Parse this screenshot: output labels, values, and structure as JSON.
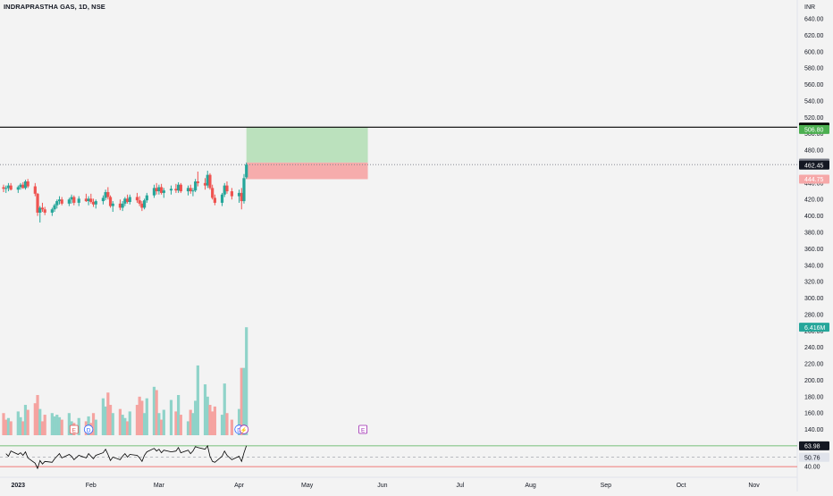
{
  "header": {
    "title": "INDRAPRASTHA GAS, 1D, NSE",
    "currency": "INR"
  },
  "colors": {
    "background": "#f3f3f3",
    "up": "#26a69a",
    "down": "#ef5350",
    "volume_up": "#8fd3c9",
    "volume_down": "#f5a3a0",
    "target_zone": "#b7dfb9",
    "stop_zone": "#f6a8a8",
    "level_line": "#000000",
    "rsi_line": "#000000",
    "rsi_upper": "#4caf50",
    "rsi_lower": "#ef5350",
    "event_earnings": "#e0524f",
    "event_dividend": "#2962ff",
    "event_split": "#9c27b0"
  },
  "price_badges": [
    {
      "label": "508.05",
      "value": 508.05,
      "bg": "#000000",
      "fg": "#ffffff"
    },
    {
      "label": "506.80",
      "value": 505.3,
      "bg": "#4caf50",
      "fg": "#ffffff"
    },
    {
      "label": "463.35",
      "value": 464.3,
      "bg": "#787b86",
      "fg": "#ffffff"
    },
    {
      "label": "462.45",
      "value": 461.9,
      "bg": "#131722",
      "fg": "#ffffff"
    },
    {
      "label": "444.75",
      "value": 444.75,
      "bg": "#f6a8a8",
      "fg": "#ffffff"
    },
    {
      "label": "6.416M",
      "value": 264.5,
      "bg": "#26a69a",
      "fg": "#ffffff"
    }
  ],
  "rsi_badges": [
    {
      "label": "63.98",
      "value": 63.98,
      "bg": "#131722",
      "fg": "#ffffff"
    },
    {
      "label": "50.76",
      "value": 50.76,
      "bg": "#e0e3eb",
      "fg": "#131722"
    },
    {
      "label": "40.00",
      "value": 40,
      "bg": "#f3f3f3",
      "fg": "#131722"
    }
  ],
  "event_markers": [
    {
      "type": "earnings",
      "symbol": "E",
      "date": "2023-01-25"
    },
    {
      "type": "dividend",
      "symbol": "D",
      "date": "2023-01-31"
    },
    {
      "type": "dividend",
      "symbol": "D",
      "date": "2023-04-03"
    },
    {
      "type": "split",
      "symbol": "⚡",
      "date": "2023-04-05"
    },
    {
      "type": "earnings",
      "symbol": "E",
      "date": "2023-05-24"
    }
  ],
  "chart_data": {
    "type": "candlestick",
    "title": "INDRAPRASTHA GAS, 1D, NSE",
    "y_axis": {
      "label": "INR",
      "range": [
        120,
        650
      ],
      "ticks": [
        "640.00",
        "620.00",
        "600.00",
        "580.00",
        "560.00",
        "540.00",
        "520.00",
        "500.00",
        "480.00",
        "460.00",
        "440.00",
        "420.00",
        "400.00",
        "380.00",
        "360.00",
        "340.00",
        "320.00",
        "300.00",
        "280.00",
        "260.00",
        "240.00",
        "220.00",
        "200.00",
        "180.00",
        "160.00",
        "140.00"
      ],
      "side": "right"
    },
    "x_axis": {
      "range": [
        "2022-12-27",
        "2023-11-10"
      ],
      "ticks": [
        {
          "label": "2023",
          "date": "2023-01-02"
        },
        {
          "label": "Feb",
          "date": "2023-02-01"
        },
        {
          "label": "Mar",
          "date": "2023-03-01"
        },
        {
          "label": "Apr",
          "date": "2023-04-03"
        },
        {
          "label": "May",
          "date": "2023-05-01"
        },
        {
          "label": "Jun",
          "date": "2023-06-01"
        },
        {
          "label": "Jul",
          "date": "2023-07-03"
        },
        {
          "label": "Aug",
          "date": "2023-08-01"
        },
        {
          "label": "Sep",
          "date": "2023-09-01"
        },
        {
          "label": "Oct",
          "date": "2023-10-02"
        },
        {
          "label": "Nov",
          "date": "2023-11-01"
        }
      ]
    },
    "horizontal_levels": [
      {
        "value": 508.05,
        "style": "solid"
      },
      {
        "value": 462.45,
        "style": "dotted"
      }
    ],
    "zones": [
      {
        "kind": "target",
        "start": "2023-04-06",
        "end": "2023-05-26",
        "from": 465.0,
        "to": 508.05
      },
      {
        "kind": "stop",
        "start": "2023-04-06",
        "end": "2023-05-26",
        "from": 444.75,
        "to": 465.0
      }
    ],
    "candles": [
      {
        "d": "2022-12-27",
        "o": 435,
        "h": 438,
        "l": 429,
        "c": 433
      },
      {
        "d": "2022-12-28",
        "o": 433,
        "h": 437,
        "l": 428,
        "c": 434
      },
      {
        "d": "2022-12-29",
        "o": 434,
        "h": 440,
        "l": 430,
        "c": 437
      },
      {
        "d": "2022-12-30",
        "o": 437,
        "h": 440,
        "l": 431,
        "c": 432
      },
      {
        "d": "2023-01-02",
        "o": 432,
        "h": 437,
        "l": 428,
        "c": 435
      },
      {
        "d": "2023-01-03",
        "o": 435,
        "h": 440,
        "l": 432,
        "c": 438
      },
      {
        "d": "2023-01-04",
        "o": 438,
        "h": 441,
        "l": 433,
        "c": 434
      },
      {
        "d": "2023-01-05",
        "o": 434,
        "h": 444,
        "l": 432,
        "c": 442
      },
      {
        "d": "2023-01-06",
        "o": 442,
        "h": 445,
        "l": 434,
        "c": 436
      },
      {
        "d": "2023-01-09",
        "o": 436,
        "h": 440,
        "l": 424,
        "c": 427
      },
      {
        "d": "2023-01-10",
        "o": 427,
        "h": 428,
        "l": 400,
        "c": 404
      },
      {
        "d": "2023-01-11",
        "o": 404,
        "h": 412,
        "l": 392,
        "c": 410
      },
      {
        "d": "2023-01-12",
        "o": 410,
        "h": 416,
        "l": 405,
        "c": 408
      },
      {
        "d": "2023-01-13",
        "o": 408,
        "h": 411,
        "l": 401,
        "c": 404
      },
      {
        "d": "2023-01-16",
        "o": 404,
        "h": 410,
        "l": 400,
        "c": 408
      },
      {
        "d": "2023-01-17",
        "o": 408,
        "h": 415,
        "l": 405,
        "c": 413
      },
      {
        "d": "2023-01-18",
        "o": 413,
        "h": 420,
        "l": 409,
        "c": 418
      },
      {
        "d": "2023-01-19",
        "o": 418,
        "h": 424,
        "l": 414,
        "c": 420
      },
      {
        "d": "2023-01-20",
        "o": 420,
        "h": 423,
        "l": 413,
        "c": 415
      },
      {
        "d": "2023-01-23",
        "o": 415,
        "h": 422,
        "l": 412,
        "c": 420
      },
      {
        "d": "2023-01-24",
        "o": 420,
        "h": 426,
        "l": 415,
        "c": 423
      },
      {
        "d": "2023-01-25",
        "o": 423,
        "h": 425,
        "l": 413,
        "c": 416
      },
      {
        "d": "2023-01-27",
        "o": 416,
        "h": 424,
        "l": 412,
        "c": 421
      },
      {
        "d": "2023-01-30",
        "o": 421,
        "h": 427,
        "l": 417,
        "c": 418
      },
      {
        "d": "2023-01-31",
        "o": 418,
        "h": 424,
        "l": 413,
        "c": 421
      },
      {
        "d": "2023-02-01",
        "o": 421,
        "h": 427,
        "l": 415,
        "c": 417
      },
      {
        "d": "2023-02-02",
        "o": 417,
        "h": 421,
        "l": 411,
        "c": 414
      },
      {
        "d": "2023-02-03",
        "o": 414,
        "h": 420,
        "l": 409,
        "c": 418
      },
      {
        "d": "2023-02-06",
        "o": 418,
        "h": 425,
        "l": 414,
        "c": 422
      },
      {
        "d": "2023-02-07",
        "o": 422,
        "h": 432,
        "l": 419,
        "c": 429
      },
      {
        "d": "2023-02-08",
        "o": 429,
        "h": 435,
        "l": 420,
        "c": 423
      },
      {
        "d": "2023-02-09",
        "o": 423,
        "h": 425,
        "l": 410,
        "c": 412
      },
      {
        "d": "2023-02-10",
        "o": 412,
        "h": 418,
        "l": 405,
        "c": 415
      },
      {
        "d": "2023-02-13",
        "o": 415,
        "h": 420,
        "l": 407,
        "c": 410
      },
      {
        "d": "2023-02-14",
        "o": 410,
        "h": 418,
        "l": 406,
        "c": 415
      },
      {
        "d": "2023-02-15",
        "o": 415,
        "h": 423,
        "l": 412,
        "c": 421
      },
      {
        "d": "2023-02-16",
        "o": 421,
        "h": 426,
        "l": 415,
        "c": 417
      },
      {
        "d": "2023-02-17",
        "o": 417,
        "h": 426,
        "l": 414,
        "c": 423
      },
      {
        "d": "2023-02-20",
        "o": 423,
        "h": 428,
        "l": 416,
        "c": 419
      },
      {
        "d": "2023-02-21",
        "o": 419,
        "h": 424,
        "l": 412,
        "c": 415
      },
      {
        "d": "2023-02-22",
        "o": 415,
        "h": 418,
        "l": 406,
        "c": 410
      },
      {
        "d": "2023-02-23",
        "o": 410,
        "h": 421,
        "l": 408,
        "c": 419
      },
      {
        "d": "2023-02-24",
        "o": 419,
        "h": 428,
        "l": 416,
        "c": 425
      },
      {
        "d": "2023-02-27",
        "o": 425,
        "h": 438,
        "l": 422,
        "c": 434
      },
      {
        "d": "2023-02-28",
        "o": 434,
        "h": 440,
        "l": 426,
        "c": 430
      },
      {
        "d": "2023-03-01",
        "o": 430,
        "h": 438,
        "l": 426,
        "c": 435
      },
      {
        "d": "2023-03-02",
        "o": 435,
        "h": 439,
        "l": 426,
        "c": 428
      },
      {
        "d": "2023-03-03",
        "o": 428,
        "h": 434,
        "l": 422,
        "c": 431
      },
      {
        "d": "2023-03-06",
        "o": 431,
        "h": 437,
        "l": 426,
        "c": 433
      },
      {
        "d": "2023-03-08",
        "o": 433,
        "h": 439,
        "l": 428,
        "c": 431
      },
      {
        "d": "2023-03-09",
        "o": 431,
        "h": 441,
        "l": 428,
        "c": 438
      },
      {
        "d": "2023-03-10",
        "o": 438,
        "h": 440,
        "l": 428,
        "c": 430
      },
      {
        "d": "2023-03-13",
        "o": 430,
        "h": 437,
        "l": 425,
        "c": 434
      },
      {
        "d": "2023-03-14",
        "o": 434,
        "h": 438,
        "l": 427,
        "c": 430
      },
      {
        "d": "2023-03-15",
        "o": 430,
        "h": 434,
        "l": 424,
        "c": 431
      },
      {
        "d": "2023-03-16",
        "o": 431,
        "h": 445,
        "l": 429,
        "c": 442
      },
      {
        "d": "2023-03-17",
        "o": 442,
        "h": 454,
        "l": 436,
        "c": 440
      },
      {
        "d": "2023-03-20",
        "o": 440,
        "h": 446,
        "l": 432,
        "c": 437
      },
      {
        "d": "2023-03-21",
        "o": 437,
        "h": 455,
        "l": 434,
        "c": 450
      },
      {
        "d": "2023-03-22",
        "o": 450,
        "h": 452,
        "l": 432,
        "c": 434
      },
      {
        "d": "2023-03-23",
        "o": 434,
        "h": 438,
        "l": 420,
        "c": 422
      },
      {
        "d": "2023-03-24",
        "o": 422,
        "h": 426,
        "l": 413,
        "c": 416
      },
      {
        "d": "2023-03-27",
        "o": 416,
        "h": 428,
        "l": 412,
        "c": 426
      },
      {
        "d": "2023-03-28",
        "o": 426,
        "h": 440,
        "l": 423,
        "c": 437
      },
      {
        "d": "2023-03-29",
        "o": 437,
        "h": 442,
        "l": 427,
        "c": 430
      },
      {
        "d": "2023-03-31",
        "o": 430,
        "h": 434,
        "l": 420,
        "c": 424
      },
      {
        "d": "2023-04-03",
        "o": 424,
        "h": 432,
        "l": 416,
        "c": 428
      },
      {
        "d": "2023-04-04",
        "o": 428,
        "h": 434,
        "l": 408,
        "c": 418
      },
      {
        "d": "2023-04-05",
        "o": 418,
        "h": 451,
        "l": 415,
        "c": 446
      },
      {
        "d": "2023-04-06",
        "o": 447,
        "h": 465,
        "l": 445,
        "c": 462.45
      }
    ],
    "volume": {
      "scale_note": "volume bars drawn on the price scale overlay",
      "values": [
        {
          "d": "2022-12-27",
          "v": 160,
          "up": false
        },
        {
          "d": "2022-12-28",
          "v": 152,
          "up": false
        },
        {
          "d": "2022-12-29",
          "v": 154,
          "up": true
        },
        {
          "d": "2022-12-30",
          "v": 150,
          "up": false
        },
        {
          "d": "2023-01-02",
          "v": 162,
          "up": true
        },
        {
          "d": "2023-01-03",
          "v": 155,
          "up": true
        },
        {
          "d": "2023-01-04",
          "v": 150,
          "up": false
        },
        {
          "d": "2023-01-05",
          "v": 170,
          "up": true
        },
        {
          "d": "2023-01-06",
          "v": 164,
          "up": false
        },
        {
          "d": "2023-01-09",
          "v": 172,
          "up": false
        },
        {
          "d": "2023-01-10",
          "v": 182,
          "up": false
        },
        {
          "d": "2023-01-11",
          "v": 165,
          "up": true
        },
        {
          "d": "2023-01-12",
          "v": 150,
          "up": false
        },
        {
          "d": "2023-01-13",
          "v": 158,
          "up": false
        },
        {
          "d": "2023-01-16",
          "v": 160,
          "up": true
        },
        {
          "d": "2023-01-17",
          "v": 156,
          "up": true
        },
        {
          "d": "2023-01-18",
          "v": 158,
          "up": true
        },
        {
          "d": "2023-01-19",
          "v": 155,
          "up": true
        },
        {
          "d": "2023-01-20",
          "v": 152,
          "up": false
        },
        {
          "d": "2023-01-23",
          "v": 160,
          "up": true
        },
        {
          "d": "2023-01-24",
          "v": 150,
          "up": true
        },
        {
          "d": "2023-01-25",
          "v": 148,
          "up": false
        },
        {
          "d": "2023-01-27",
          "v": 154,
          "up": true
        },
        {
          "d": "2023-01-30",
          "v": 150,
          "up": false
        },
        {
          "d": "2023-01-31",
          "v": 156,
          "up": true
        },
        {
          "d": "2023-02-01",
          "v": 148,
          "up": false
        },
        {
          "d": "2023-02-02",
          "v": 160,
          "up": false
        },
        {
          "d": "2023-02-03",
          "v": 152,
          "up": true
        },
        {
          "d": "2023-02-06",
          "v": 178,
          "up": true
        },
        {
          "d": "2023-02-07",
          "v": 168,
          "up": true
        },
        {
          "d": "2023-02-08",
          "v": 185,
          "up": false
        },
        {
          "d": "2023-02-09",
          "v": 170,
          "up": false
        },
        {
          "d": "2023-02-10",
          "v": 160,
          "up": true
        },
        {
          "d": "2023-02-13",
          "v": 165,
          "up": false
        },
        {
          "d": "2023-02-14",
          "v": 158,
          "up": true
        },
        {
          "d": "2023-02-15",
          "v": 154,
          "up": true
        },
        {
          "d": "2023-02-16",
          "v": 150,
          "up": false
        },
        {
          "d": "2023-02-17",
          "v": 162,
          "up": true
        },
        {
          "d": "2023-02-20",
          "v": 170,
          "up": false
        },
        {
          "d": "2023-02-21",
          "v": 180,
          "up": false
        },
        {
          "d": "2023-02-22",
          "v": 175,
          "up": false
        },
        {
          "d": "2023-02-23",
          "v": 160,
          "up": true
        },
        {
          "d": "2023-02-24",
          "v": 178,
          "up": true
        },
        {
          "d": "2023-02-27",
          "v": 192,
          "up": true
        },
        {
          "d": "2023-02-28",
          "v": 188,
          "up": false
        },
        {
          "d": "2023-03-01",
          "v": 160,
          "up": true
        },
        {
          "d": "2023-03-02",
          "v": 152,
          "up": false
        },
        {
          "d": "2023-03-03",
          "v": 164,
          "up": true
        },
        {
          "d": "2023-03-06",
          "v": 176,
          "up": true
        },
        {
          "d": "2023-03-08",
          "v": 162,
          "up": false
        },
        {
          "d": "2023-03-09",
          "v": 182,
          "up": true
        },
        {
          "d": "2023-03-10",
          "v": 158,
          "up": false
        },
        {
          "d": "2023-03-13",
          "v": 150,
          "up": true
        },
        {
          "d": "2023-03-14",
          "v": 164,
          "up": false
        },
        {
          "d": "2023-03-15",
          "v": 160,
          "up": true
        },
        {
          "d": "2023-03-16",
          "v": 175,
          "up": true
        },
        {
          "d": "2023-03-17",
          "v": 218,
          "up": true
        },
        {
          "d": "2023-03-20",
          "v": 195,
          "up": true
        },
        {
          "d": "2023-03-21",
          "v": 180,
          "up": true
        },
        {
          "d": "2023-03-22",
          "v": 170,
          "up": false
        },
        {
          "d": "2023-03-23",
          "v": 162,
          "up": false
        },
        {
          "d": "2023-03-24",
          "v": 168,
          "up": false
        },
        {
          "d": "2023-03-27",
          "v": 158,
          "up": true
        },
        {
          "d": "2023-03-28",
          "v": 196,
          "up": true
        },
        {
          "d": "2023-03-29",
          "v": 160,
          "up": false
        },
        {
          "d": "2023-03-31",
          "v": 152,
          "up": false
        },
        {
          "d": "2023-04-03",
          "v": 165,
          "up": true
        },
        {
          "d": "2023-04-04",
          "v": 215,
          "up": false
        },
        {
          "d": "2023-04-05",
          "v": 215,
          "up": true
        },
        {
          "d": "2023-04-06",
          "v": 264.5,
          "up": true
        }
      ]
    },
    "rsi": {
      "range": [
        35,
        70
      ],
      "upper": 63.98,
      "mid": 50.76,
      "lower": 40.0,
      "values": [
        55,
        52,
        58,
        54,
        56,
        53,
        57,
        50,
        44,
        38,
        47,
        43,
        46,
        45,
        49,
        52,
        55,
        50,
        54,
        52,
        48,
        53,
        50,
        55,
        52,
        49,
        53,
        56,
        60,
        54,
        47,
        51,
        48,
        52,
        55,
        51,
        54,
        53,
        50,
        46,
        53,
        57,
        61,
        58,
        60,
        56,
        59,
        57,
        58,
        62,
        56,
        59,
        55,
        58,
        63,
        62,
        60,
        64,
        52,
        46,
        45,
        52,
        58,
        53,
        48,
        52,
        46,
        56,
        63.98
      ]
    }
  }
}
